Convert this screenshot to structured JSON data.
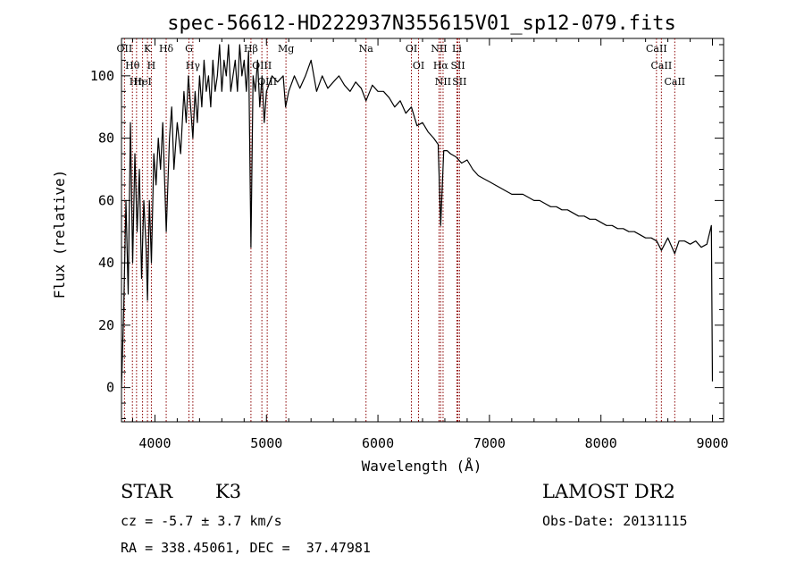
{
  "chart_data": {
    "type": "line",
    "title": "spec-56612-HD222937N355615V01_sp12-079.fits",
    "xlabel": "Wavelength (Å)",
    "ylabel": "Flux (relative)",
    "xlim": [
      3700,
      9100
    ],
    "ylim": [
      -11,
      112
    ],
    "x_ticks": [
      4000,
      5000,
      6000,
      7000,
      8000,
      9000
    ],
    "y_ticks": [
      0,
      20,
      40,
      60,
      80,
      100
    ],
    "grid": false,
    "line_color": "#000000",
    "annotation_color": "#8b0000",
    "series": [
      {
        "x": [
          3700,
          3720,
          3740,
          3760,
          3780,
          3800,
          3820,
          3840,
          3860,
          3880,
          3900,
          3920,
          3933,
          3950,
          3968,
          3990,
          4010,
          4030,
          4050,
          4070,
          4101,
          4130,
          4150,
          4170,
          4200,
          4230,
          4260,
          4280,
          4300,
          4320,
          4340,
          4360,
          4380,
          4400,
          4420,
          4440,
          4460,
          4480,
          4500,
          4520,
          4540,
          4560,
          4580,
          4600,
          4620,
          4640,
          4660,
          4680,
          4700,
          4720,
          4740,
          4760,
          4780,
          4800,
          4820,
          4840,
          4861,
          4880,
          4900,
          4920,
          4940,
          4960,
          4980,
          5000,
          5050,
          5100,
          5150,
          5172,
          5200,
          5250,
          5300,
          5350,
          5400,
          5450,
          5500,
          5550,
          5600,
          5650,
          5700,
          5750,
          5800,
          5850,
          5893,
          5950,
          6000,
          6050,
          6100,
          6150,
          6200,
          6250,
          6300,
          6350,
          6400,
          6450,
          6500,
          6540,
          6563,
          6590,
          6620,
          6650,
          6700,
          6750,
          6800,
          6850,
          6900,
          6950,
          7000,
          7050,
          7100,
          7150,
          7200,
          7250,
          7300,
          7350,
          7400,
          7450,
          7500,
          7550,
          7600,
          7650,
          7700,
          7750,
          7800,
          7850,
          7900,
          7950,
          8000,
          8050,
          8100,
          8150,
          8200,
          8250,
          8300,
          8350,
          8400,
          8450,
          8500,
          8542,
          8600,
          8662,
          8700,
          8750,
          8800,
          8850,
          8900,
          8950,
          8990,
          9000
        ],
        "y": [
          0,
          25,
          60,
          30,
          85,
          40,
          75,
          50,
          70,
          35,
          60,
          45,
          28,
          60,
          40,
          75,
          65,
          80,
          70,
          85,
          50,
          80,
          90,
          70,
          85,
          75,
          95,
          85,
          100,
          90,
          80,
          95,
          85,
          100,
          90,
          105,
          95,
          100,
          90,
          105,
          95,
          100,
          110,
          95,
          105,
          100,
          110,
          95,
          100,
          105,
          95,
          110,
          100,
          105,
          95,
          108,
          45,
          100,
          95,
          105,
          90,
          100,
          85,
          95,
          100,
          98,
          100,
          90,
          95,
          100,
          96,
          100,
          105,
          95,
          100,
          96,
          98,
          100,
          97,
          95,
          98,
          96,
          92,
          97,
          95,
          95,
          93,
          90,
          92,
          88,
          90,
          84,
          85,
          82,
          80,
          78,
          52,
          76,
          76,
          75,
          74,
          72,
          73,
          70,
          68,
          67,
          66,
          65,
          64,
          63,
          62,
          62,
          62,
          61,
          60,
          60,
          59,
          58,
          58,
          57,
          57,
          56,
          55,
          55,
          54,
          54,
          53,
          52,
          52,
          51,
          51,
          50,
          50,
          49,
          48,
          48,
          47,
          44,
          48,
          43,
          47,
          47,
          46,
          47,
          45,
          46,
          52,
          2
        ]
      }
    ],
    "line_ids": [
      {
        "label": "Hθ",
        "wavelength": 3798
      },
      {
        "label": "OII",
        "wavelength": 3727
      },
      {
        "label": "HeI",
        "wavelength": 3889
      },
      {
        "label": "Hη",
        "wavelength": 3835
      },
      {
        "label": "K",
        "wavelength": 3933
      },
      {
        "label": "H",
        "wavelength": 3968
      },
      {
        "label": "Hδ",
        "wavelength": 4101
      },
      {
        "label": "G",
        "wavelength": 4305
      },
      {
        "label": "Hγ",
        "wavelength": 4340
      },
      {
        "label": "Hβ",
        "wavelength": 4861
      },
      {
        "label": "OIII",
        "wavelength": 4959
      },
      {
        "label": "OIII",
        "wavelength": 5007
      },
      {
        "label": "Mg",
        "wavelength": 5175
      },
      {
        "label": "Na",
        "wavelength": 5893
      },
      {
        "label": "OI",
        "wavelength": 6300
      },
      {
        "label": "OI",
        "wavelength": 6364
      },
      {
        "label": "NII",
        "wavelength": 6548
      },
      {
        "label": "NII",
        "wavelength": 6584
      },
      {
        "label": "Hα",
        "wavelength": 6563
      },
      {
        "label": "Li",
        "wavelength": 6708
      },
      {
        "label": "SII",
        "wavelength": 6717
      },
      {
        "label": "SII",
        "wavelength": 6731
      },
      {
        "label": "CaII",
        "wavelength": 8498
      },
      {
        "label": "CaII",
        "wavelength": 8542
      },
      {
        "label": "CaII",
        "wavelength": 8662
      }
    ]
  },
  "info": {
    "class": "STAR",
    "subclass": "K3",
    "survey": "LAMOST DR2",
    "cz": "cz = -5.7 ± 3.7 km/s",
    "obs_date": "Obs-Date: 20131115",
    "coords": "RA = 338.45061, DEC =  37.47981"
  }
}
